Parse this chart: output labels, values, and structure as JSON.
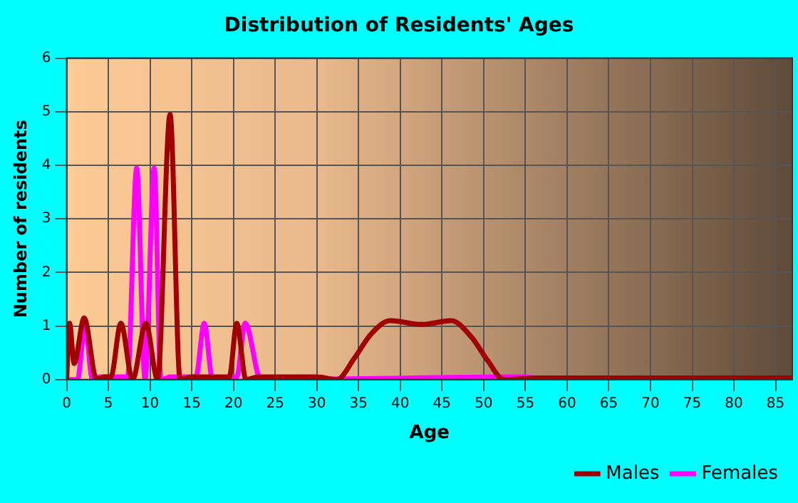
{
  "chart_data": {
    "type": "line",
    "title": "Distribution of Residents' Ages",
    "xlabel": "Age",
    "ylabel": "Number of residents",
    "xlim": [
      0,
      87
    ],
    "xticks": [
      0,
      5,
      10,
      15,
      20,
      25,
      30,
      35,
      40,
      45,
      50,
      55,
      60,
      65,
      70,
      75,
      80,
      85
    ],
    "ylim": [
      0,
      6
    ],
    "yticks": [
      0,
      1,
      2,
      3,
      4,
      5,
      6
    ],
    "grid": true,
    "legend": "bottom right",
    "marker": "none",
    "line_style": "solid",
    "series": [
      {
        "name": "Males",
        "color": "#a00000",
        "x": [
          0,
          0.35,
          0.9,
          2.1,
          3.6,
          4.5,
          5.3,
          6.5,
          7.9,
          9.5,
          10.9,
          12.4,
          13.6,
          15,
          19.5,
          20.4,
          21.5,
          23,
          30,
          32.4,
          34.5,
          36.5,
          38.8,
          42.6,
          46.1,
          48.5,
          50.5,
          52.4,
          56,
          87
        ],
        "values": [
          0,
          1.05,
          0.3,
          1.15,
          0,
          0.05,
          0.05,
          1.05,
          0,
          1.05,
          0,
          4.95,
          0,
          0.05,
          0.05,
          1.05,
          0,
          0.05,
          0.05,
          0,
          0.4,
          0.85,
          1.1,
          1.03,
          1.1,
          0.8,
          0.35,
          0,
          0.03,
          0.03
        ]
      },
      {
        "name": "Females",
        "color": "#ff00ff",
        "x": [
          0,
          1.3,
          2.2,
          3.1,
          4,
          7.3,
          8.4,
          9.4,
          10.5,
          11.3,
          12.5,
          15.5,
          16.5,
          17.5,
          20.4,
          21.4,
          23.3,
          55,
          57,
          87
        ],
        "values": [
          0,
          0,
          1,
          0,
          0.05,
          0.05,
          3.95,
          0,
          3.95,
          0,
          0.05,
          0.05,
          1.05,
          0,
          0.05,
          1.05,
          0,
          0.05,
          0,
          0
        ]
      }
    ]
  }
}
